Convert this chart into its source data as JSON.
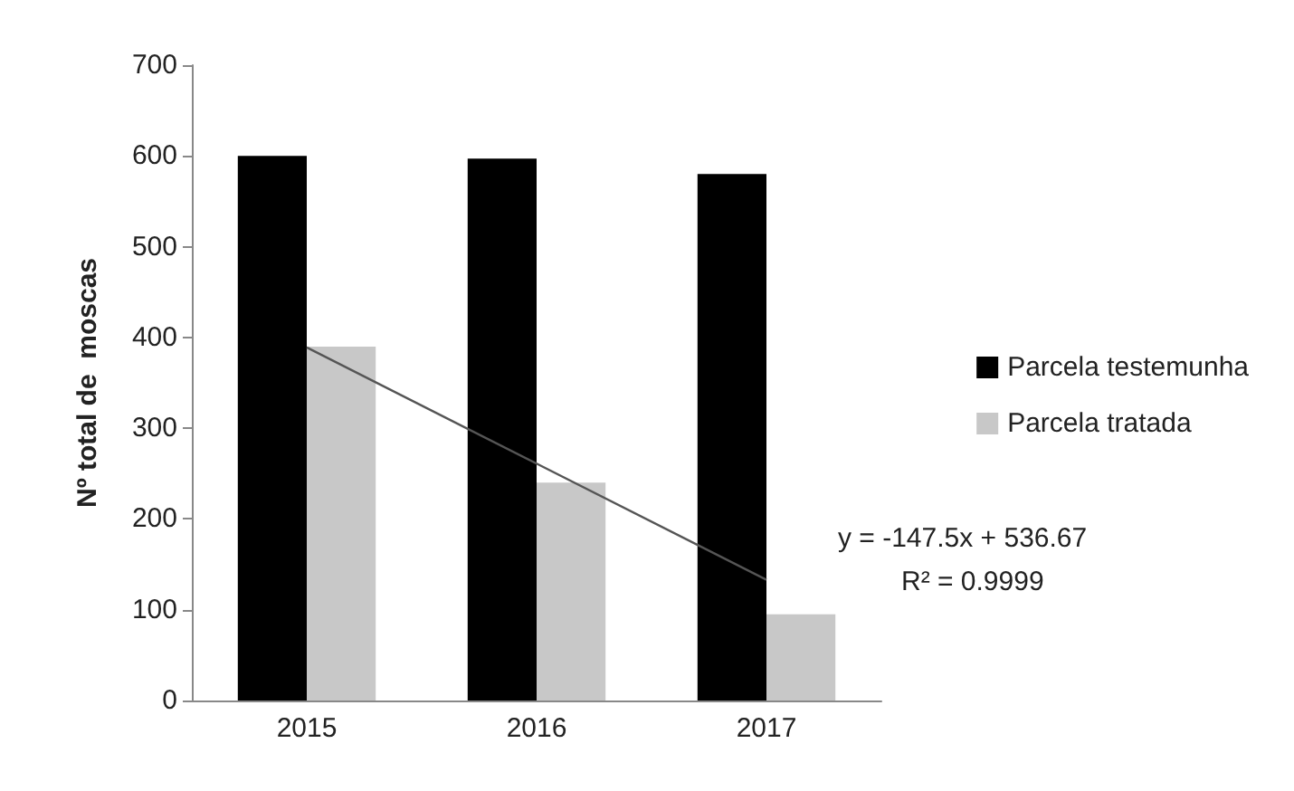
{
  "chart_data": {
    "type": "bar",
    "ylabel": "Nº total de  moscas",
    "categories": [
      "2015",
      "2016",
      "2017"
    ],
    "series": [
      {
        "name": "Parcela testemunha",
        "color": "#000000",
        "values": [
          600,
          597,
          580
        ]
      },
      {
        "name": "Parcela tratada",
        "color": "#c8c8c8",
        "values": [
          390,
          240,
          95
        ]
      },
      {
        "type": "line",
        "color": "#555555",
        "values": [
          389,
          261,
          133
        ]
      }
    ],
    "ylim": [
      0,
      700
    ],
    "yticks": [
      0,
      100,
      200,
      300,
      400,
      500,
      600,
      700
    ],
    "grid": false,
    "legend": "right",
    "marker": "none",
    "annotations": [
      "y = -147.5x + 536.67",
      "R² = 0.9999"
    ]
  }
}
